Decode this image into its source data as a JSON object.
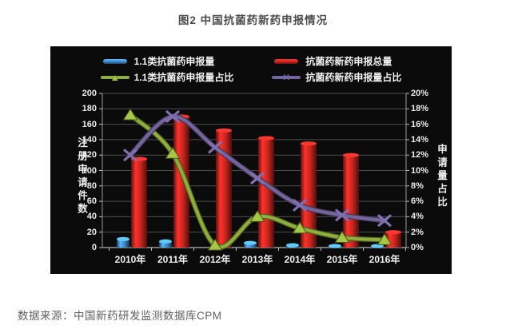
{
  "page": {
    "title": "图2 中国抗菌药新药申报情况",
    "source_note": "数据来源：中国新药研发监测数据库CPM"
  },
  "chart_data": {
    "type": "bar+line combo",
    "title": "图2 中国抗菌药新药申报情况",
    "categories": [
      "2010年",
      "2011年",
      "2012年",
      "2013年",
      "2014年",
      "2015年",
      "2016年"
    ],
    "series": [
      {
        "name": "1.1类抗菌药申报量",
        "type": "bar",
        "axis": "left",
        "color": "#3f87c8",
        "values": [
          11,
          8,
          0,
          6,
          3,
          2,
          2
        ]
      },
      {
        "name": "抗菌药新药申报总量",
        "type": "bar",
        "axis": "left",
        "color": "#c8251f",
        "values": [
          115,
          170,
          152,
          142,
          135,
          120,
          20
        ]
      },
      {
        "name": "1.1类抗菌药申报量占比",
        "type": "line",
        "axis": "right",
        "color": "#8fae3b",
        "marker": "triangle",
        "values": [
          17.2,
          12.2,
          0.3,
          4.0,
          2.5,
          1.3,
          1.0
        ]
      },
      {
        "name": "抗菌药新药申报量占比",
        "type": "line",
        "axis": "right",
        "color": "#75659f",
        "marker": "x",
        "values": [
          12.0,
          17.0,
          13.0,
          9.0,
          5.5,
          4.2,
          3.5
        ]
      }
    ],
    "left_axis": {
      "label": "注册申请件数",
      "min": 0,
      "max": 200,
      "step": 20,
      "unit": ""
    },
    "right_axis": {
      "label": "申请量占比",
      "min": 0,
      "max": 20,
      "step": 2,
      "unit": "%"
    },
    "grid": true,
    "legend_position": "top",
    "panel_background": "#0b0b0b",
    "grid_color": "#4c4c4c",
    "text_color": "#f0f0f0"
  }
}
